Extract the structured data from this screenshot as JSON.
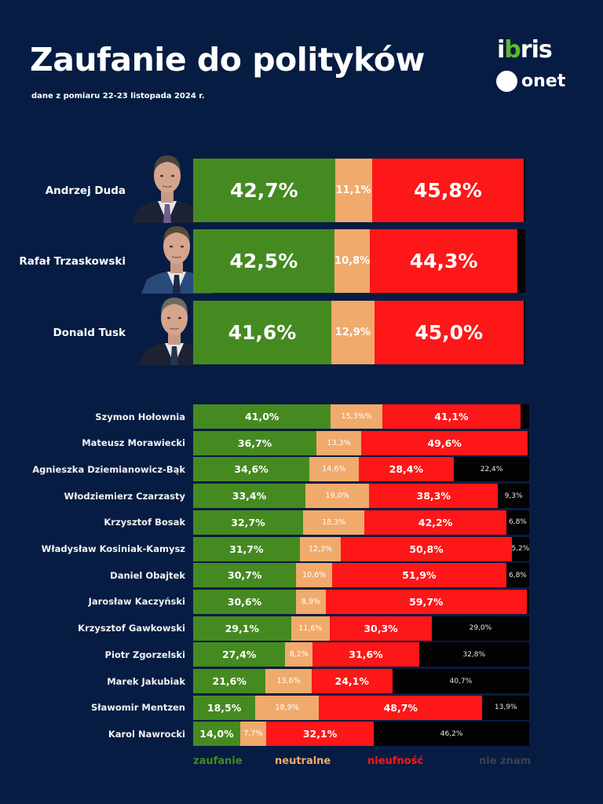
{
  "header": {
    "title": "Zaufanie do polityków",
    "subtitle": "dane z pomiaru 22-23 listopada 2024 r.",
    "logo_ibris_pre": "i",
    "logo_ibris_mid": "b",
    "logo_ibris_post": "ris",
    "logo_onet": "onet"
  },
  "colors": {
    "background": "#061c42",
    "zaufanie": "#458a21",
    "neutralne": "#f0aa6c",
    "nieufnosc": "#fd1718",
    "nie_znam": "#030303",
    "legend_nie_znam": "#3a4250"
  },
  "chart_data": {
    "type": "bar",
    "orientation": "horizontal-stacked-100",
    "title": "Zaufanie do polityków",
    "subtitle": "dane z pomiaru 22-23 listopada 2024 r.",
    "legend_position": "bottom",
    "series_names": [
      "zaufanie",
      "neutralne",
      "nieufność",
      "nie znam"
    ],
    "featured": [
      {
        "name": "Andrzej Duda",
        "values": [
          42.7,
          11.1,
          45.8,
          0.4
        ],
        "labels": [
          "42,7%",
          "11,1%",
          "45,8%",
          ""
        ]
      },
      {
        "name": "Rafał Trzaskowski",
        "values": [
          42.5,
          10.8,
          44.3,
          2.4
        ],
        "labels": [
          "42,5%",
          "10,8%",
          "44,3%",
          ""
        ]
      },
      {
        "name": "Donald Tusk",
        "values": [
          41.6,
          12.9,
          45.0,
          0.5
        ],
        "labels": [
          "41,6%",
          "12,9%",
          "45,0%",
          ""
        ]
      }
    ],
    "rows": [
      {
        "name": "Szymon Hołownia",
        "values": [
          41.0,
          15.3,
          41.1,
          2.6
        ],
        "labels": [
          "41,0%",
          "15,3%%",
          "41,1%",
          ""
        ]
      },
      {
        "name": "Mateusz Morawiecki",
        "values": [
          36.7,
          13.3,
          49.6,
          0.4
        ],
        "labels": [
          "36,7%",
          "13,3%",
          "49,6%",
          ""
        ]
      },
      {
        "name": "Agnieszka Dziemianowicz-Bąk",
        "values": [
          34.6,
          14.6,
          28.4,
          22.4
        ],
        "labels": [
          "34,6%",
          "14,6%",
          "28,4%",
          "22,4%"
        ]
      },
      {
        "name": "Włodziemierz Czarzasty",
        "values": [
          33.4,
          19.0,
          38.3,
          9.3
        ],
        "labels": [
          "33,4%",
          "19,0%",
          "38,3%",
          "9,3%"
        ]
      },
      {
        "name": "Krzysztof Bosak",
        "values": [
          32.7,
          18.3,
          42.2,
          6.8
        ],
        "labels": [
          "32,7%",
          "18,3%",
          "42,2%",
          "6,8%"
        ]
      },
      {
        "name": "Władysław Kosiniak-Kamysz",
        "values": [
          31.7,
          12.3,
          50.8,
          5.2
        ],
        "labels": [
          "31,7%",
          "12,3%",
          "50,8%",
          "5,2%"
        ]
      },
      {
        "name": "Daniel Obajtek",
        "values": [
          30.7,
          10.6,
          51.9,
          6.8
        ],
        "labels": [
          "30,7%",
          "10,6%",
          "51,9%",
          "6,8%"
        ]
      },
      {
        "name": "Jarosław Kaczyński",
        "values": [
          30.6,
          8.9,
          59.7,
          0.8
        ],
        "labels": [
          "30,6%",
          "8,9%",
          "59,7%",
          ""
        ]
      },
      {
        "name": "Krzysztof Gawkowski",
        "values": [
          29.1,
          11.6,
          30.3,
          29.0
        ],
        "labels": [
          "29,1%",
          "11,6%",
          "30,3%",
          "29,0%"
        ]
      },
      {
        "name": "Piotr Zgorzelski",
        "values": [
          27.4,
          8.2,
          31.6,
          32.8
        ],
        "labels": [
          "27,4%",
          "8,2%",
          "31,6%",
          "32,8%"
        ]
      },
      {
        "name": "Marek Jakubiak",
        "values": [
          21.6,
          13.6,
          24.1,
          40.7
        ],
        "labels": [
          "21,6%",
          "13,6%",
          "24,1%",
          "40,7%"
        ]
      },
      {
        "name": "Sławomir Mentzen",
        "values": [
          18.5,
          18.9,
          48.7,
          13.9
        ],
        "labels": [
          "18,5%",
          "18,9%",
          "48,7%",
          "13,9%"
        ]
      },
      {
        "name": "Karol Nawrocki",
        "values": [
          14.0,
          7.7,
          32.1,
          46.2
        ],
        "labels": [
          "14,0%",
          "7,7%",
          "32,1%",
          "46,2%"
        ]
      }
    ],
    "xlim": [
      0,
      100
    ]
  },
  "legend": {
    "zaufanie": "zaufanie",
    "neutralne": "neutralne",
    "nieufnosc": "nieufność",
    "nie_znam": "nie znam"
  }
}
